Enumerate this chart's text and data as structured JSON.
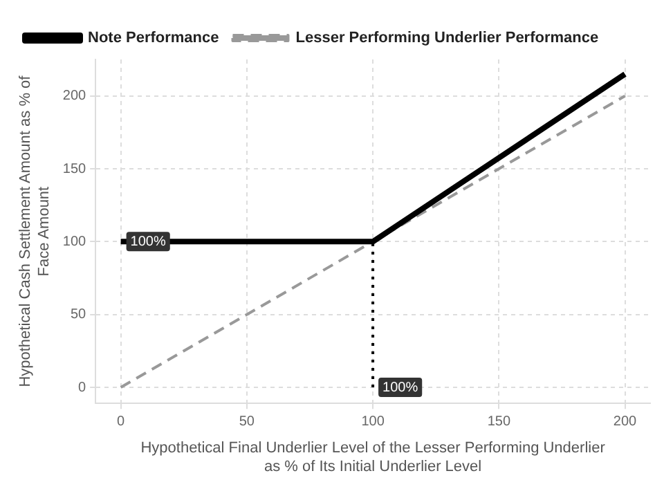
{
  "chart_data": {
    "type": "line",
    "xlabel": "Hypothetical Final Underlier Level of the Lesser Performing Underlier as % of Its Initial Underlier Level",
    "ylabel": "Hypothetical Cash Settlement Amount as % of Face Amount",
    "series": [
      {
        "name": "Note Performance",
        "color": "#000000",
        "x": [
          0,
          100,
          200
        ],
        "values": [
          100,
          100,
          215
        ],
        "line_style": "solid"
      },
      {
        "name": "Lesser Performing Underlier Performance",
        "color": "#999999",
        "x": [
          0,
          200
        ],
        "values": [
          0,
          200
        ],
        "line_style": "dashed"
      },
      {
        "color": "#000000",
        "x": [
          100,
          100
        ],
        "values": [
          0,
          100
        ],
        "line_style": "dotted"
      }
    ],
    "xlim": [
      -10,
      210
    ],
    "xticks": [
      0,
      50,
      100,
      150,
      200
    ],
    "ylim": [
      -11,
      225
    ],
    "yticks": [
      0,
      50,
      100,
      150,
      200
    ],
    "grid": true,
    "legend": "top left",
    "marker": "none",
    "annotations": [
      {
        "text": "100%",
        "x": 0,
        "y": 100
      },
      {
        "text": "100%",
        "x": 100,
        "y": 0
      }
    ]
  }
}
